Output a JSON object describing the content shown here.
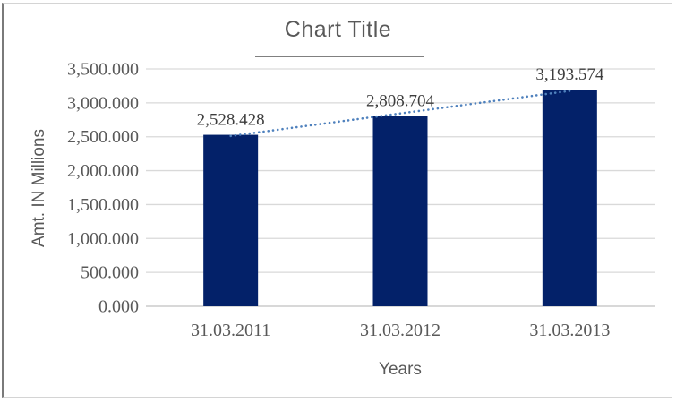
{
  "chart_data": {
    "type": "bar",
    "title": "Chart Title",
    "xlabel": "Years",
    "ylabel": "Amt. IN Millions",
    "categories": [
      "31.03.2011",
      "31.03.2012",
      "31.03.2013"
    ],
    "values": [
      2528.428,
      2808.704,
      3193.574
    ],
    "data_labels": [
      "2,528.428",
      "2,808.704",
      "3,193.574"
    ],
    "ylim": [
      0,
      3500
    ],
    "ytick_step": 500,
    "ytick_labels": [
      "0.000",
      "500.000",
      "1,000.000",
      "1,500.000",
      "2,000.000",
      "2,500.000",
      "3,000.000",
      "3,500.000"
    ],
    "grid": true,
    "legend": "none",
    "trendline": {
      "type": "linear",
      "style": "dotted",
      "endpoint_values": [
        2510.996,
        3176.142
      ]
    },
    "colors": {
      "bar": "#032169",
      "trendline": "#4f81bd",
      "gridline": "#d9d9d9",
      "axis_line": "#c0c0c0",
      "tick_text": "#595959",
      "title_text": "#595959",
      "data_label_text": "#3d3d3d",
      "frame_border": "#d4d4d4",
      "frame_border_left": "#7a7a7a",
      "title_underline": "#808080"
    }
  }
}
